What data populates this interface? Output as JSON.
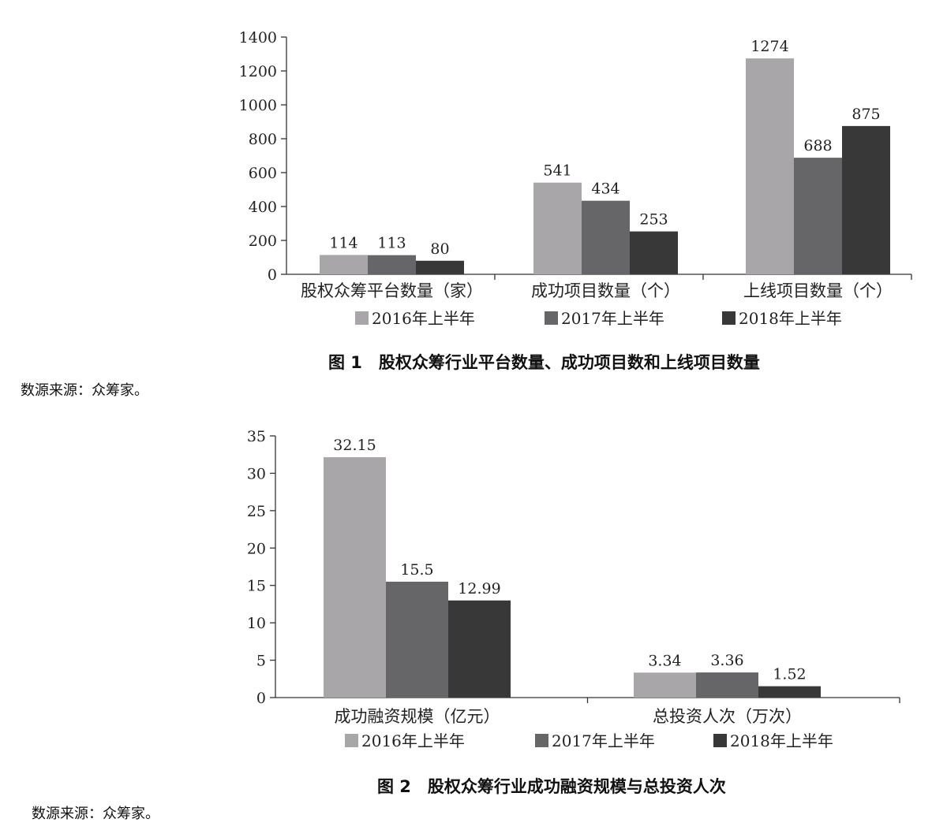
{
  "colors": {
    "series_2016": "#a9a6a9",
    "series_2017": "#666668",
    "series_2018": "#383838"
  },
  "figure1": {
    "caption": "图 1　股权众筹行业平台数量、成功项目数和上线项目数量",
    "source": "数源来源：众筹家。"
  },
  "figure2": {
    "caption": "图 2　股权众筹行业成功融资规模与总投资人次",
    "source": "数源来源：众筹家。"
  },
  "chart_data": [
    {
      "type": "bar",
      "title": "",
      "xlabel": "",
      "ylabel": "",
      "ylim": [
        0,
        1400
      ],
      "yticks": [
        "0",
        "200",
        "400",
        "600",
        "800",
        "1000",
        "1200",
        "1400"
      ],
      "ytick_values": [
        0,
        200,
        400,
        600,
        800,
        1000,
        1200,
        1400
      ],
      "categories": [
        "股权众筹平台数量（家）",
        "成功项目数量（个）",
        "上线项目数量（个）"
      ],
      "series": [
        {
          "name": "2016年上半年",
          "values": [
            114,
            541,
            1274
          ],
          "labels": [
            "114",
            "541",
            "1274"
          ]
        },
        {
          "name": "2017年上半年",
          "values": [
            113,
            434,
            688
          ],
          "labels": [
            "113",
            "434",
            "688"
          ]
        },
        {
          "name": "2018年上半年",
          "values": [
            80,
            253,
            875
          ],
          "labels": [
            "80",
            "253",
            "875"
          ]
        }
      ],
      "grid": false,
      "legend": "bottom"
    },
    {
      "type": "bar",
      "title": "",
      "xlabel": "",
      "ylabel": "",
      "ylim": [
        0,
        35
      ],
      "yticks": [
        "0",
        "5",
        "10",
        "15",
        "20",
        "25",
        "30",
        "35"
      ],
      "ytick_values": [
        0,
        5,
        10,
        15,
        20,
        25,
        30,
        35
      ],
      "categories": [
        "成功融资规模（亿元）",
        "总投资人次（万次）"
      ],
      "series": [
        {
          "name": "2016年上半年",
          "values": [
            32.15,
            3.34
          ],
          "labels": [
            "32.15",
            "3.34"
          ]
        },
        {
          "name": "2017年上半年",
          "values": [
            15.5,
            3.36
          ],
          "labels": [
            "15.5",
            "3.36"
          ]
        },
        {
          "name": "2018年上半年",
          "values": [
            12.99,
            1.52
          ],
          "labels": [
            "12.99",
            "1.52"
          ]
        }
      ],
      "grid": false,
      "legend": "bottom"
    }
  ]
}
